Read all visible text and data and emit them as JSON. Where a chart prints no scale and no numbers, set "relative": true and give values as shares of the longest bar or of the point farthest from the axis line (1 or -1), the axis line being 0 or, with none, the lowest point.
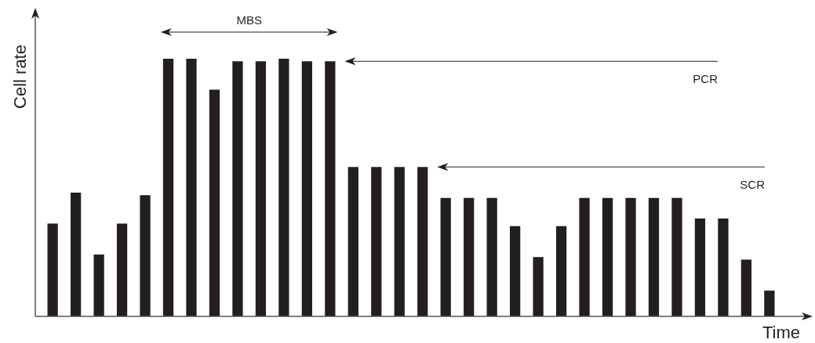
{
  "chart_data": {
    "type": "bar",
    "relative": true,
    "xlabel": "Time",
    "ylabel": "Cell rate",
    "tick_labels": false,
    "categories": [
      null,
      null,
      null,
      null,
      null,
      null,
      null,
      null,
      null,
      null,
      null,
      null,
      null,
      null,
      null,
      null,
      null,
      null,
      null,
      null,
      null,
      null,
      null,
      null,
      null,
      null,
      null,
      null,
      null,
      null,
      null,
      null
    ],
    "values": [
      0.36,
      0.48,
      0.24,
      0.36,
      0.47,
      1,
      1,
      0.88,
      0.99,
      0.99,
      1,
      0.99,
      0.99,
      0.58,
      0.58,
      0.58,
      0.58,
      0.46,
      0.46,
      0.46,
      0.35,
      0.23,
      0.35,
      0.46,
      0.46,
      0.46,
      0.46,
      0.46,
      0.38,
      0.38,
      0.22,
      0.1
    ],
    "color": "#231f20",
    "annotations": [
      {
        "text": "MBS"
      },
      "PCR",
      "SCR"
    ]
  }
}
